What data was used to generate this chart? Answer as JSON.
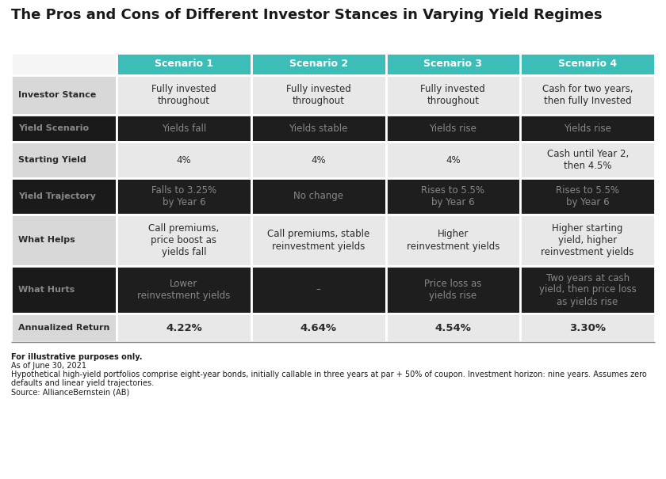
{
  "title": "The Pros and Cons of Different Investor Stances in Varying Yield Regimes",
  "header_bg": "#3dbdb8",
  "header_text_color": "#ffffff",
  "light_label_bg": "#d8d8d8",
  "light_cell_bg": "#e8e8e8",
  "dark_label_bg": "#1a1a1a",
  "dark_cell_bg": "#1e1e1e",
  "dark_label_text": "#888888",
  "dark_cell_text": "#888888",
  "light_label_text": "#2a2a2a",
  "light_cell_text": "#2a2a2a",
  "border_color": "#ffffff",
  "scenarios": [
    "Scenario 1",
    "Scenario 2",
    "Scenario 3",
    "Scenario 4"
  ],
  "row_labels": [
    "Investor Stance",
    "Yield Scenario",
    "Starting Yield",
    "Yield Trajectory",
    "What Helps",
    "What Hurts",
    "Annualized Return"
  ],
  "data": [
    [
      "Fully invested\nthroughout",
      "Fully invested\nthroughout",
      "Fully invested\nthroughout",
      "Cash for two years,\nthen fully Invested"
    ],
    [
      "Yields fall",
      "Yields stable",
      "Yields rise",
      "Yields rise"
    ],
    [
      "4%",
      "4%",
      "4%",
      "Cash until Year 2,\nthen 4.5%"
    ],
    [
      "Falls to 3.25%\nby Year 6",
      "No change",
      "Rises to 5.5%\nby Year 6",
      "Rises to 5.5%\nby Year 6"
    ],
    [
      "Call premiums,\nprice boost as\nyields fall",
      "Call premiums, stable\nreinvestment yields",
      "Higher\nreinvestment yields",
      "Higher starting\nyield, higher\nreinvestment yields"
    ],
    [
      "Lower\nreinvestment yields",
      "–",
      "Price loss as\nyields rise",
      "Two years at cash\nyield, then price loss\nas yields rise"
    ],
    [
      "4.22%",
      "4.64%",
      "4.54%",
      "3.30%"
    ]
  ],
  "dark_rows": [
    1,
    3,
    5
  ],
  "footnotes": [
    {
      "text": "For illustrative purposes only.",
      "bold": true
    },
    {
      "text": "As of June 30, 2021",
      "bold": false
    },
    {
      "text": "Hypothetical high-yield portfolios comprise eight-year bonds, initially callable in three years at par + 50% of coupon. Investment horizon: nine years. Assumes zero",
      "bold": false
    },
    {
      "text": "defaults and linear yield trajectories.",
      "bold": false
    },
    {
      "text": "Source: AllianceBernstein (AB)",
      "bold": false
    }
  ],
  "title_fontsize": 13,
  "header_fontsize": 9,
  "label_fontsize": 8,
  "cell_fontsize": 8.5,
  "annualized_fontsize": 9.5,
  "footnote_fontsize": 7
}
